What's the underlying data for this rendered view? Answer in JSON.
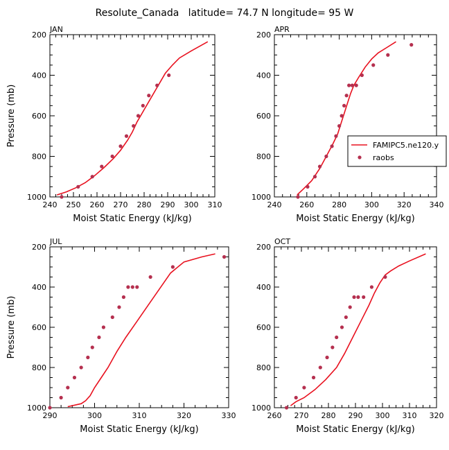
{
  "figure_title": "Resolute_Canada   latitude= 74.7 N longitude= 95 W",
  "colors": {
    "model": "#e8101e",
    "observations": "#b5304f"
  },
  "legend": {
    "model_label": "FAMIPC5.ne120.y",
    "obs_label": "raobs",
    "placement": "right, inside APR panel"
  },
  "chart_data": [
    {
      "type": "line",
      "panel_label": "JAN",
      "xlabel": "Moist Static Energy (kJ/kg)",
      "ylabel": "Pressure (mb)",
      "xlim": [
        240,
        310
      ],
      "ylim": [
        1000,
        200
      ],
      "xticks": [
        240,
        250,
        260,
        270,
        280,
        290,
        300,
        310
      ],
      "yticks": [
        200,
        400,
        600,
        800,
        1000
      ],
      "series": [
        {
          "name": "FAMIPC5.ne120.y",
          "kind": "line",
          "x": [
            243,
            247,
            251,
            255,
            259,
            263,
            267,
            270,
            273,
            275,
            277,
            279,
            281,
            283,
            285,
            287,
            289,
            292,
            295,
            300,
            307
          ],
          "y": [
            990,
            975,
            955,
            930,
            895,
            855,
            810,
            770,
            720,
            680,
            630,
            590,
            550,
            510,
            470,
            430,
            390,
            350,
            315,
            280,
            235
          ]
        },
        {
          "name": "raobs",
          "kind": "points",
          "x": [
            245,
            252,
            258,
            262,
            266.5,
            270,
            272.5,
            275.5,
            277.5,
            279.5,
            282,
            285.5,
            290.5
          ],
          "y": [
            1000,
            950,
            900,
            850,
            800,
            750,
            700,
            650,
            600,
            550,
            500,
            450,
            400
          ]
        }
      ]
    },
    {
      "type": "line",
      "panel_label": "APR",
      "xlabel": "Moist Static Energy (kJ/kg)",
      "ylabel": "",
      "xlim": [
        240,
        340
      ],
      "ylim": [
        1000,
        200
      ],
      "xticks": [
        240,
        260,
        280,
        300,
        320,
        340
      ],
      "yticks": [
        200,
        400,
        600,
        800,
        1000
      ],
      "series": [
        {
          "name": "FAMIPC5.ne120.y",
          "kind": "line",
          "x": [
            254,
            258,
            263,
            268,
            272,
            276,
            279,
            281,
            283,
            285,
            287,
            289,
            292,
            296,
            300,
            304,
            309,
            315
          ],
          "y": [
            990,
            960,
            920,
            860,
            800,
            740,
            690,
            640,
            590,
            540,
            490,
            450,
            410,
            360,
            320,
            290,
            265,
            235
          ]
        },
        {
          "name": "raobs",
          "kind": "points",
          "x": [
            254.5,
            260.5,
            265,
            268,
            272,
            275.5,
            278,
            280,
            281.5,
            283,
            284.5,
            286,
            288,
            290.5,
            294,
            301,
            310,
            324.5
          ],
          "y": [
            1000,
            950,
            900,
            850,
            800,
            750,
            700,
            650,
            600,
            550,
            500,
            450,
            450,
            450,
            400,
            350,
            300,
            250
          ]
        }
      ]
    },
    {
      "type": "line",
      "panel_label": "JUL",
      "xlabel": "Moist Static Energy (kJ/kg)",
      "ylabel": "Pressure (mb)",
      "xlim": [
        290,
        330
      ],
      "ylim": [
        1000,
        200
      ],
      "xticks": [
        290,
        300,
        310,
        320,
        330
      ],
      "yticks": [
        200,
        400,
        600,
        800,
        1000
      ],
      "series": [
        {
          "name": "FAMIPC5.ne120.y",
          "kind": "line",
          "x": [
            294,
            297,
            298,
            299,
            300,
            301.5,
            303,
            305,
            307,
            309.5,
            312,
            314.5,
            317,
            320,
            324,
            327
          ],
          "y": [
            995,
            980,
            965,
            940,
            900,
            850,
            800,
            720,
            650,
            570,
            490,
            410,
            330,
            275,
            250,
            235
          ]
        },
        {
          "name": "raobs",
          "kind": "points",
          "x": [
            290,
            292.5,
            294,
            295.5,
            297,
            298.5,
            299.5,
            301,
            302,
            304,
            305.5,
            306.5,
            307.5,
            308.5,
            309.5,
            312.5,
            317.5,
            329
          ],
          "y": [
            1000,
            950,
            900,
            850,
            800,
            750,
            700,
            650,
            600,
            550,
            500,
            450,
            400,
            400,
            400,
            350,
            300,
            250
          ]
        }
      ]
    },
    {
      "type": "line",
      "panel_label": "OCT",
      "xlabel": "Moist Static Energy (kJ/kg)",
      "ylabel": "",
      "xlim": [
        260,
        320
      ],
      "ylim": [
        1000,
        200
      ],
      "xticks": [
        260,
        270,
        280,
        290,
        300,
        310,
        320
      ],
      "yticks": [
        200,
        400,
        600,
        800,
        1000
      ],
      "series": [
        {
          "name": "FAMIPC5.ne120.y",
          "kind": "line",
          "x": [
            266,
            268,
            271,
            275,
            279,
            283,
            286,
            289,
            292,
            295,
            297,
            299,
            301,
            303,
            306,
            310,
            316
          ],
          "y": [
            990,
            970,
            950,
            910,
            860,
            800,
            730,
            650,
            570,
            490,
            430,
            380,
            340,
            320,
            295,
            270,
            235
          ]
        },
        {
          "name": "raobs",
          "kind": "points",
          "x": [
            264.5,
            268,
            271,
            274.5,
            277,
            279.5,
            281.5,
            283,
            285,
            286.5,
            288,
            289.5,
            291,
            293,
            296,
            301
          ],
          "y": [
            1000,
            950,
            900,
            850,
            800,
            750,
            700,
            650,
            600,
            550,
            500,
            450,
            450,
            450,
            400,
            350
          ]
        }
      ]
    }
  ]
}
